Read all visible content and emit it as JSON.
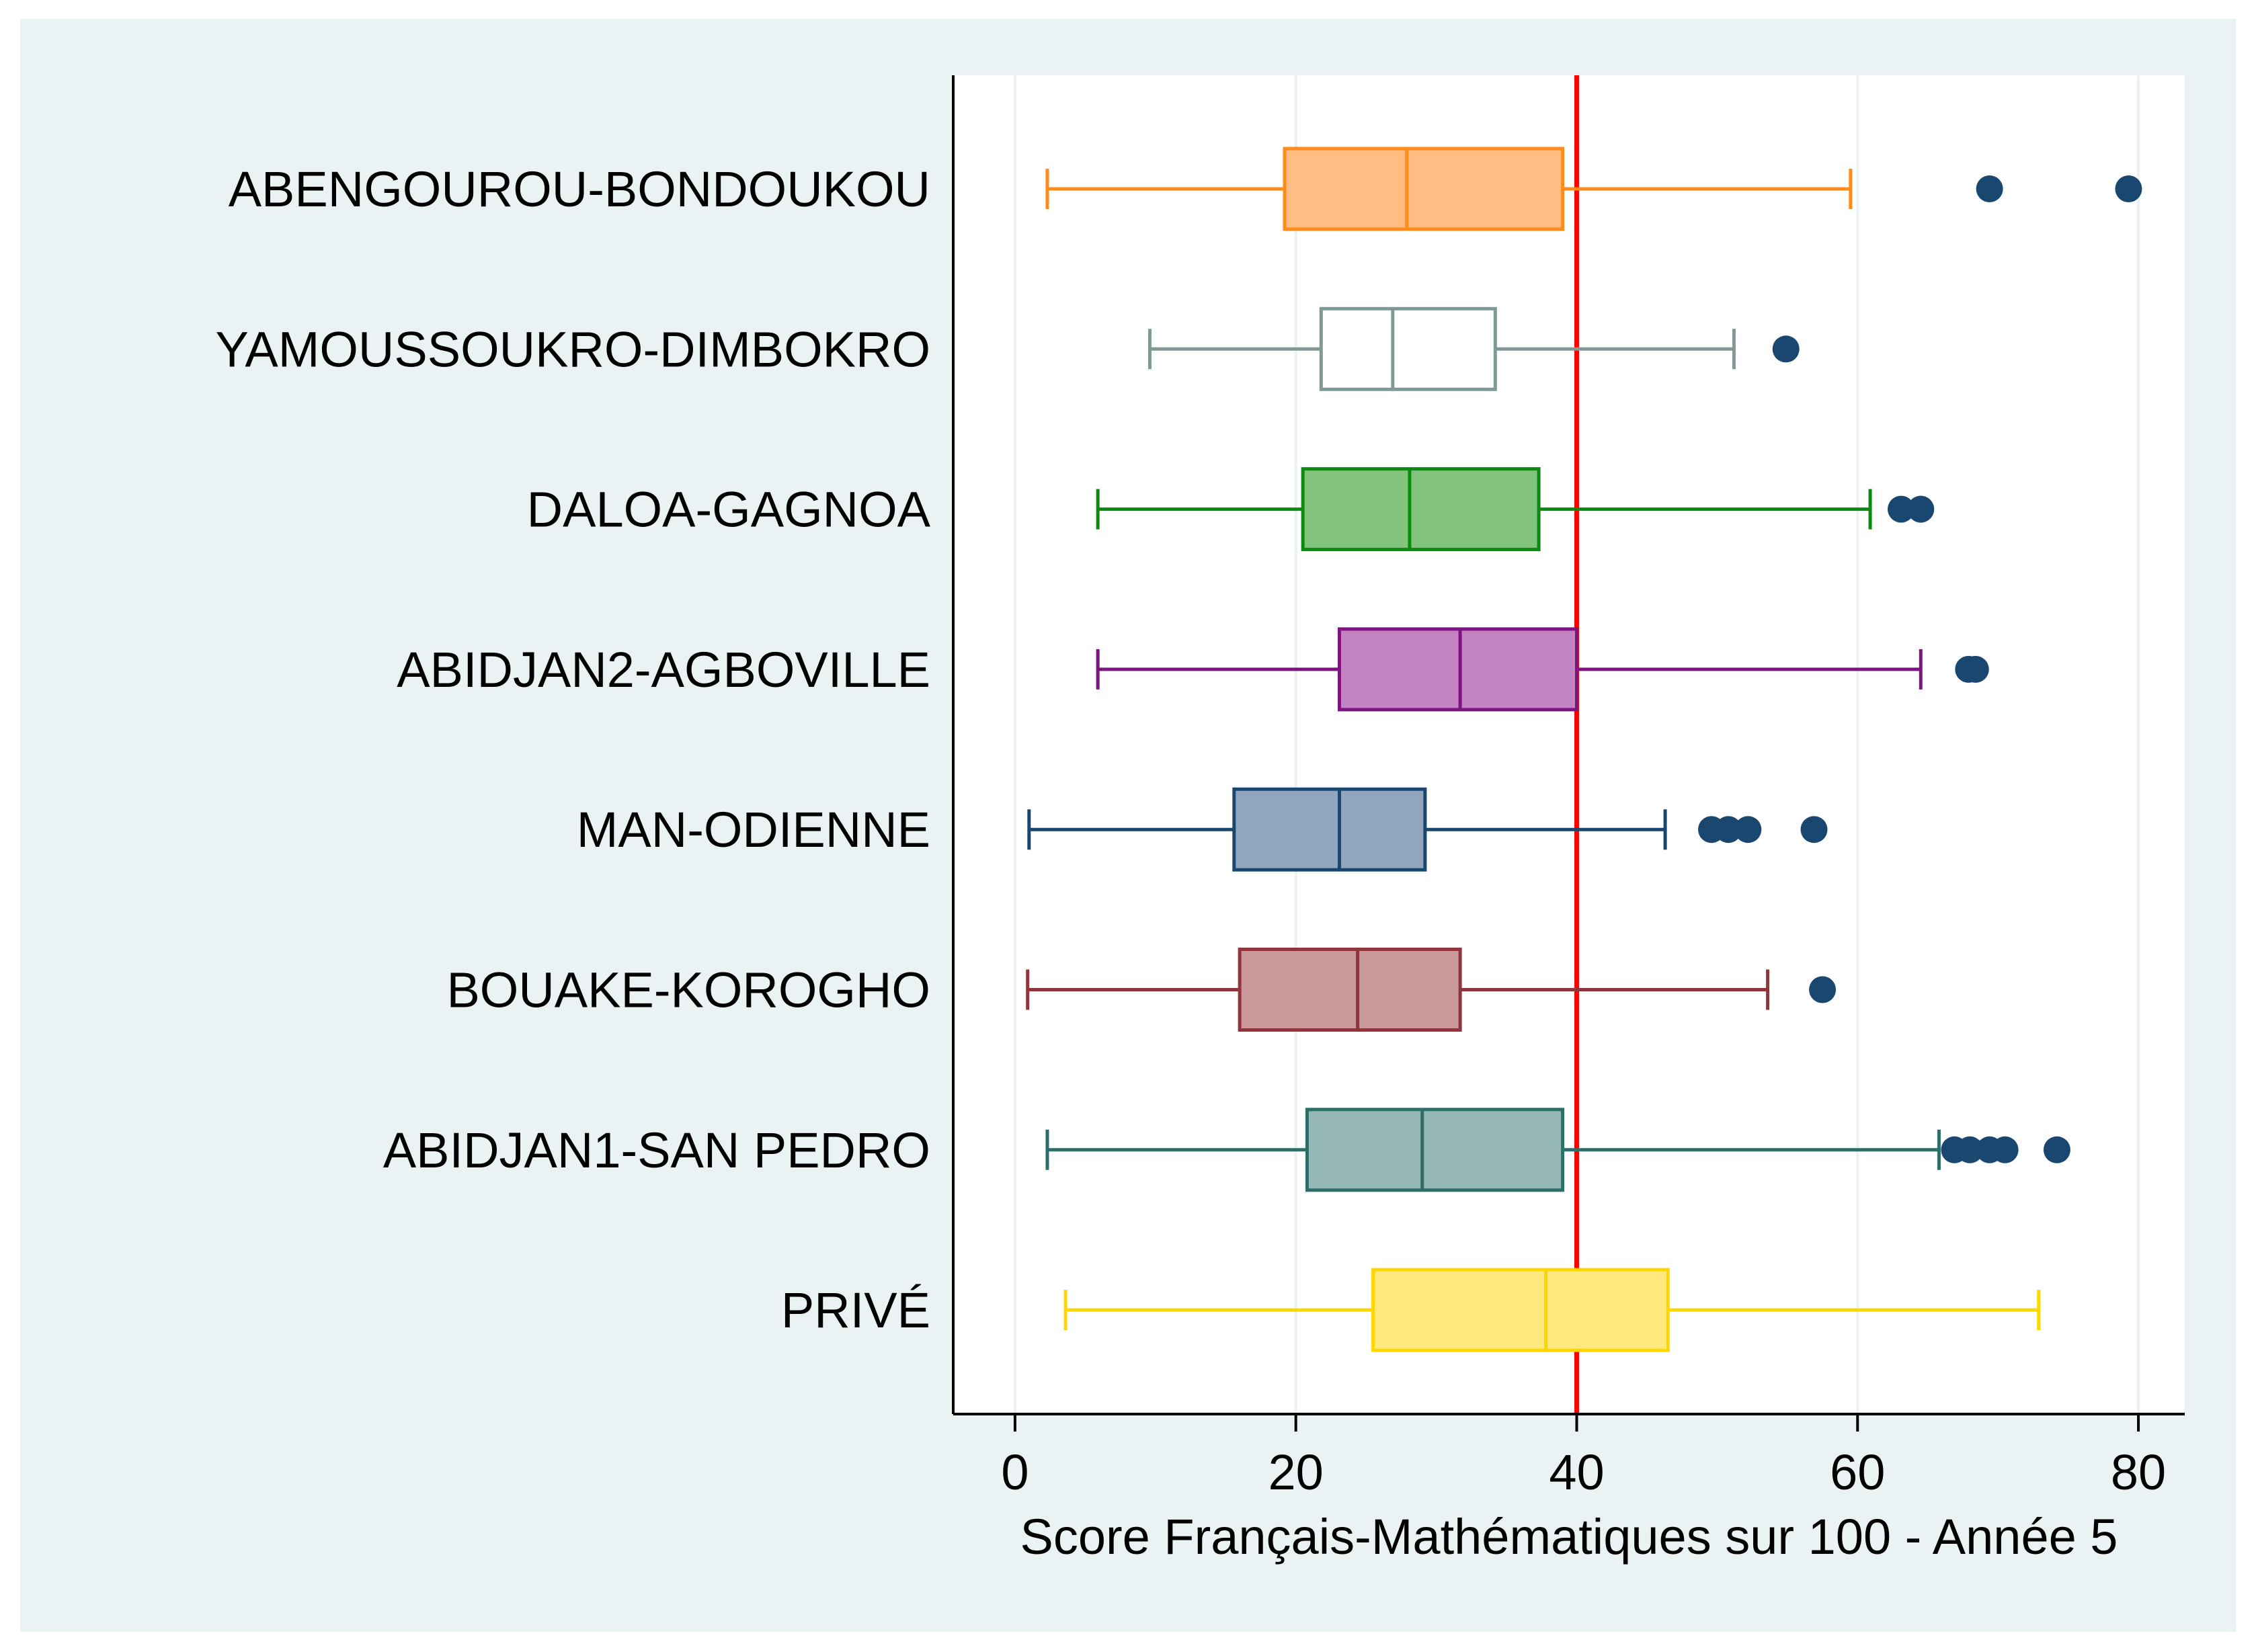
{
  "chart_data": {
    "type": "boxplot",
    "orientation": "horizontal",
    "title": "",
    "xlabel": "Score Français-Mathématiques sur 100 - Année 5",
    "ylabel": "",
    "xlim": [
      -4.4,
      83.3
    ],
    "xticks": [
      0,
      20,
      40,
      60,
      80
    ],
    "grid": true,
    "reference_line": {
      "x": 40,
      "color": "#ff0000"
    },
    "outlier_color": "#1a476f",
    "background_color": "#eaf2f3",
    "plot_background": "#ffffff",
    "series": [
      {
        "name": "ABENGOUROU-BONDOUKOU",
        "whisker_low": 2.3,
        "q1": 19.2,
        "median": 27.9,
        "q3": 39.0,
        "whisker_high": 59.5,
        "outliers": [
          69.4,
          79.3
        ],
        "color": "#ff8c1a",
        "fill": "#ffbd83"
      },
      {
        "name": "YAMOUSSOUKRO-DIMBOKRO",
        "whisker_low": 9.6,
        "q1": 21.8,
        "median": 26.9,
        "q3": 34.2,
        "whisker_high": 51.2,
        "outliers": [
          54.9
        ],
        "color": "#7f9a96",
        "fill": "#ffffff"
      },
      {
        "name": "DALOA-GAGNOA",
        "whisker_low": 5.9,
        "q1": 20.5,
        "median": 28.1,
        "q3": 37.3,
        "whisker_high": 60.9,
        "outliers": [
          63.1,
          64.5
        ],
        "color": "#0b8a12",
        "fill": "#82c47e"
      },
      {
        "name": "ABIDJAN2-AGBOVILLE",
        "whisker_low": 5.9,
        "q1": 23.1,
        "median": 31.7,
        "q3": 40.0,
        "whisker_high": 64.5,
        "outliers": [
          67.9,
          68.4
        ],
        "color": "#7e1382",
        "fill": "#c382c1"
      },
      {
        "name": "MAN-ODIENNE",
        "whisker_low": 1.0,
        "q1": 15.6,
        "median": 23.1,
        "q3": 29.2,
        "whisker_high": 46.3,
        "outliers": [
          49.6,
          50.8,
          52.2,
          56.9
        ],
        "color": "#1a476f",
        "fill": "#91a6bd"
      },
      {
        "name": "BOUAKE-KOROGHO",
        "whisker_low": 0.9,
        "q1": 16.0,
        "median": 24.4,
        "q3": 31.7,
        "whisker_high": 53.6,
        "outliers": [
          57.5
        ],
        "color": "#90353b",
        "fill": "#ca9a9c"
      },
      {
        "name": "ABIDJAN1-SAN PEDRO",
        "whisker_low": 2.3,
        "q1": 20.8,
        "median": 29.0,
        "q3": 39.0,
        "whisker_high": 65.8,
        "outliers": [
          66.9,
          68.0,
          69.4,
          70.5,
          74.2
        ],
        "color": "#2d6e68",
        "fill": "#95b8b5"
      },
      {
        "name": "PRIVÉ",
        "whisker_low": 3.6,
        "q1": 25.5,
        "median": 37.8,
        "q3": 46.5,
        "whisker_high": 72.9,
        "outliers": [],
        "color": "#ffd700",
        "fill": "#ffe97f"
      }
    ]
  }
}
